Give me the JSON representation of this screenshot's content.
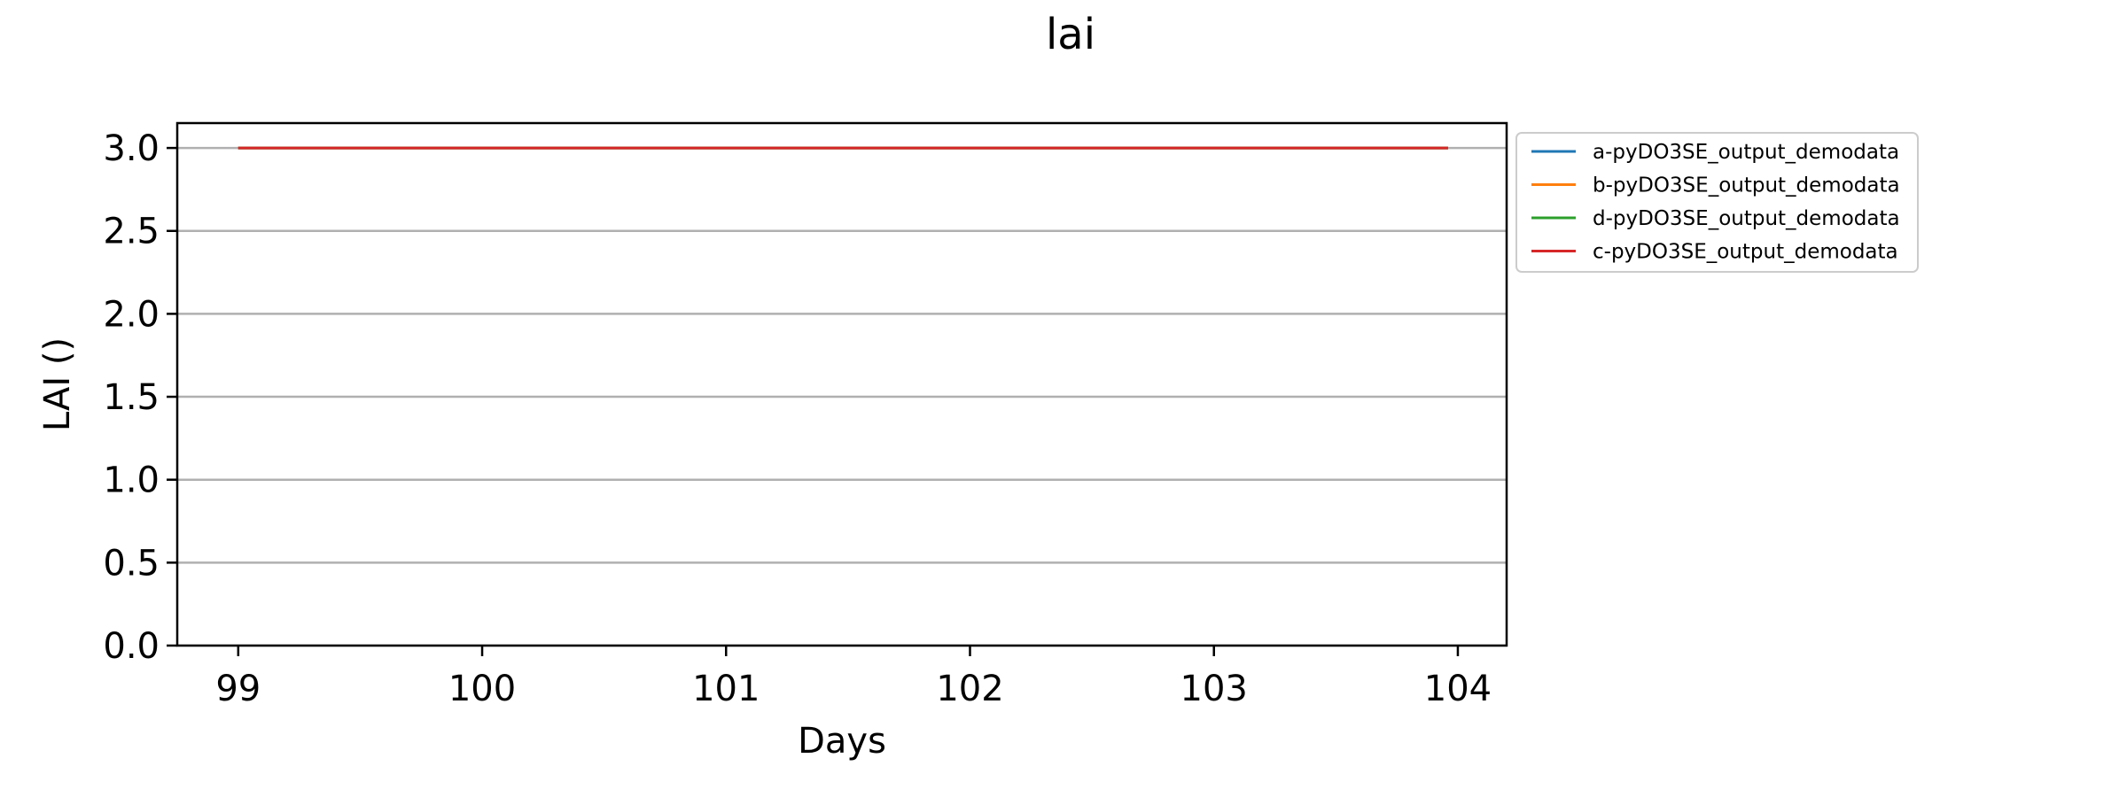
{
  "chart_data": {
    "type": "line",
    "title": "lai",
    "xlabel": "Days",
    "ylabel": "LAI ()",
    "xlim": [
      98.75,
      104.2
    ],
    "ylim": [
      0,
      3.15
    ],
    "xticks": [
      "99",
      "100",
      "101",
      "102",
      "103",
      "104"
    ],
    "yticks": [
      "0.0",
      "0.5",
      "1.0",
      "1.5",
      "2.0",
      "2.5",
      "3.0"
    ],
    "grid": "horizontal",
    "legend_position": "outside-top-right",
    "series": [
      {
        "name": "a-pyDO3SE_output_demodata",
        "color": "#1f77b4",
        "x": [
          99,
          103.96
        ],
        "y": [
          3.0,
          3.0
        ]
      },
      {
        "name": "b-pyDO3SE_output_demodata",
        "color": "#ff7f0e",
        "x": [
          99,
          103.96
        ],
        "y": [
          3.0,
          3.0
        ]
      },
      {
        "name": "d-pyDO3SE_output_demodata",
        "color": "#2ca02c",
        "x": [
          99,
          103.96
        ],
        "y": [
          3.0,
          3.0
        ]
      },
      {
        "name": "c-pyDO3SE_output_demodata",
        "color": "#d62728",
        "x": [
          99,
          103.96
        ],
        "y": [
          3.0,
          3.0
        ]
      }
    ]
  }
}
